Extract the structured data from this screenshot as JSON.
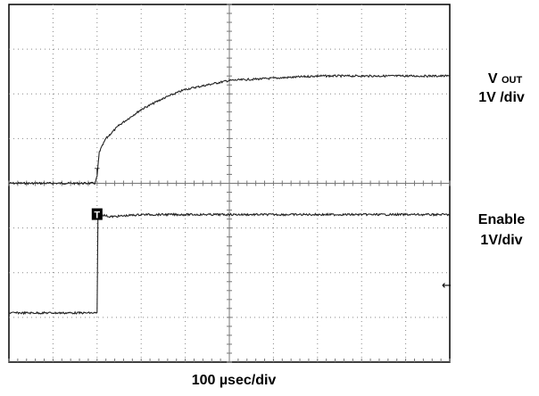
{
  "chart_data": {
    "type": "line",
    "grid": true,
    "divisions": {
      "x": 10,
      "y": 8
    },
    "xlim": [
      0,
      10
    ],
    "ylim": [
      0,
      8
    ],
    "trigger_marker": "T",
    "channel2_marker": "T",
    "ref_arrow": "←",
    "series": [
      {
        "name": "V OUT",
        "points": [
          [
            0,
            4.0
          ],
          [
            1.5,
            4.0
          ],
          [
            1.95,
            4.0
          ],
          [
            2.0,
            4.15
          ],
          [
            2.05,
            4.7
          ],
          [
            2.2,
            5.0
          ],
          [
            2.5,
            5.3
          ],
          [
            3.0,
            5.65
          ],
          [
            3.5,
            5.9
          ],
          [
            4.0,
            6.1
          ],
          [
            4.5,
            6.2
          ],
          [
            5.0,
            6.3
          ],
          [
            6.0,
            6.35
          ],
          [
            7.0,
            6.4
          ],
          [
            8.0,
            6.4
          ],
          [
            9.0,
            6.4
          ],
          [
            10.0,
            6.4
          ]
        ]
      },
      {
        "name": "Enable",
        "points": [
          [
            0,
            1.1
          ],
          [
            1.95,
            1.1
          ],
          [
            2.0,
            1.1
          ],
          [
            2.02,
            3.3
          ],
          [
            2.1,
            3.3
          ],
          [
            2.3,
            3.25
          ],
          [
            3.0,
            3.3
          ],
          [
            5.0,
            3.3
          ],
          [
            7.0,
            3.3
          ],
          [
            9.0,
            3.3
          ],
          [
            10.0,
            3.3
          ]
        ]
      }
    ],
    "labels": {
      "ch1_name": "V",
      "ch1_sub": "OUT",
      "ch1_scale": "1V /div",
      "ch2_name": "Enable",
      "ch2_scale": "1V/div",
      "timebase": "100 µsec/div"
    }
  }
}
